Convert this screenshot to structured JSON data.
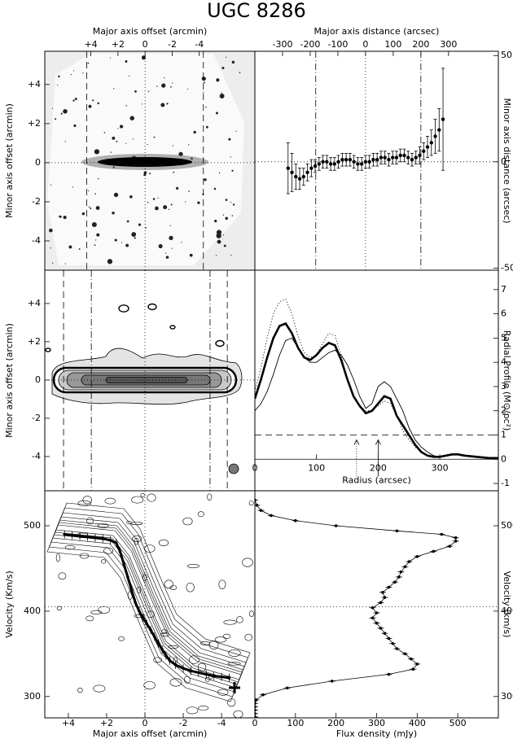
{
  "title": "UGC 8286",
  "chart_data": [
    {
      "type": "image",
      "x_label": "Major axis offset (arcmin)",
      "y_label": "Minor axis offset (arcmin)",
      "xlim": [
        7.4,
        -8.1
      ],
      "ylim": [
        -5.5,
        5.7
      ],
      "xticks": [
        {
          "value": 4,
          "label": "+4"
        },
        {
          "value": 2,
          "label": "+2"
        },
        0,
        -2,
        -4
      ],
      "yticks": [
        {
          "value": 4,
          "label": "+4"
        },
        {
          "value": 2,
          "label": "+2"
        },
        0,
        -2,
        -4
      ],
      "vlines": [
        {
          "x": 4.3,
          "style": "dashed"
        },
        {
          "x": 0,
          "style": "dotted"
        },
        {
          "x": -4.3,
          "style": "dashed"
        }
      ],
      "hlines": [
        {
          "y": 0,
          "style": "dotted"
        }
      ]
    },
    {
      "type": "errorbar",
      "x_label": "Major axis distance (arcsec)",
      "y_label": "Minor axis distance (arcsec)",
      "xlim": [
        -400,
        480
      ],
      "ylim": [
        -51,
        52
      ],
      "xticks": [
        -300,
        -200,
        -100,
        0,
        100,
        200,
        300
      ],
      "yticks": [
        50,
        0,
        -50
      ],
      "vlines": [
        {
          "x": -180,
          "style": "dashdot"
        },
        {
          "x": 0,
          "style": "dotted"
        },
        {
          "x": 200,
          "style": "dashdot"
        }
      ],
      "hlines": [
        {
          "y": 0,
          "style": "dotted"
        }
      ],
      "x": [
        -280,
        -266,
        -252,
        -238,
        -224,
        -210,
        -196,
        -182,
        -168,
        -154,
        -140,
        -126,
        -112,
        -98,
        -84,
        -70,
        -56,
        -42,
        -28,
        -14,
        0,
        14,
        28,
        42,
        56,
        70,
        84,
        98,
        112,
        126,
        140,
        154,
        168,
        182,
        196,
        210,
        224,
        238,
        252,
        266,
        280
      ],
      "y": [
        -3,
        -5,
        -7,
        -8,
        -7,
        -5,
        -3,
        -2,
        -1,
        0,
        0,
        -1,
        -1,
        0,
        1,
        1,
        1,
        0,
        -1,
        -1,
        0,
        0,
        1,
        1,
        2,
        2,
        1,
        2,
        2,
        3,
        3,
        2,
        1,
        2,
        3,
        5,
        7,
        9,
        12,
        15,
        20
      ],
      "errors": [
        12,
        9,
        6,
        5,
        4,
        4,
        4,
        3,
        3,
        3,
        3,
        3,
        3,
        3,
        3,
        3,
        3,
        3,
        3,
        3,
        3,
        3,
        3,
        3,
        3,
        3,
        3,
        3,
        3,
        3,
        3,
        3,
        3,
        3,
        4,
        4,
        5,
        6,
        8,
        10,
        24
      ]
    },
    {
      "type": "contour",
      "y_label": "Minor axis offset (arcmin)",
      "xlim": [
        5.23,
        -5.74
      ],
      "ylim": [
        -5.79,
        5.74
      ],
      "yticks": [
        {
          "value": 4,
          "label": "+4"
        },
        {
          "value": 2,
          "label": "+2"
        },
        0,
        -2,
        -4
      ],
      "vlines": [
        {
          "x": 4.25,
          "style": "dashed"
        },
        {
          "x": 2.8,
          "style": "dashdot"
        },
        {
          "x": 0,
          "style": "dotted"
        },
        {
          "x": -3.4,
          "style": "dashdot"
        },
        {
          "x": -4.3,
          "style": "dashed"
        }
      ],
      "hlines": [
        {
          "y": 0,
          "style": "dotted"
        }
      ]
    },
    {
      "type": "line",
      "x_label": "Radius (arcsec)",
      "y_label": "Radial Profile (M⊙/pc²)",
      "xlim": [
        0,
        395
      ],
      "ylim": [
        -1.3,
        7.8
      ],
      "xticks": [
        0,
        100,
        200,
        300
      ],
      "yticks": [
        7,
        6,
        5,
        4,
        3,
        2,
        1,
        0,
        -1
      ],
      "hlines": [
        {
          "y": 0,
          "style": "solid"
        },
        {
          "y": 1,
          "style": "dashed"
        }
      ],
      "arrows": [
        165,
        200
      ],
      "x": [
        0,
        10,
        20,
        30,
        40,
        50,
        60,
        70,
        80,
        90,
        100,
        110,
        120,
        130,
        140,
        150,
        160,
        170,
        180,
        190,
        200,
        210,
        220,
        230,
        240,
        250,
        260,
        270,
        280,
        290,
        300,
        310,
        320,
        330,
        340,
        360,
        380,
        395
      ],
      "series": [
        {
          "style": "thick",
          "values": [
            2.5,
            3.3,
            4.2,
            5.0,
            5.5,
            5.6,
            5.2,
            4.6,
            4.2,
            4.1,
            4.3,
            4.6,
            4.8,
            4.7,
            4.1,
            3.3,
            2.6,
            2.2,
            1.9,
            2.0,
            2.3,
            2.6,
            2.5,
            1.8,
            1.4,
            1.0,
            0.6,
            0.3,
            0.15,
            0.1,
            0.1,
            0.15,
            0.2,
            0.2,
            0.15,
            0.1,
            0.05,
            0.05
          ]
        },
        {
          "style": "thin",
          "values": [
            2.0,
            2.3,
            2.8,
            3.5,
            4.3,
            4.9,
            5.0,
            4.6,
            4.2,
            4.0,
            4.0,
            4.2,
            4.4,
            4.5,
            4.3,
            3.9,
            3.3,
            2.6,
            2.1,
            2.3,
            3.0,
            3.2,
            3.0,
            2.5,
            2.0,
            1.3,
            0.8,
            0.5,
            0.3,
            0.15,
            0.1,
            0.15,
            0.2,
            0.2,
            0.15,
            0.1,
            0.05,
            0.05
          ]
        },
        {
          "style": "dotted",
          "values": [
            2.8,
            3.8,
            5.0,
            6.0,
            6.5,
            6.6,
            6.0,
            5.1,
            4.4,
            4.2,
            4.3,
            4.8,
            5.2,
            5.1,
            4.3,
            3.3,
            2.6,
            2.2,
            2.0,
            2.0,
            2.2,
            2.4,
            2.3,
            1.8,
            1.2,
            0.8,
            0.5,
            0.3,
            0.15,
            0.1,
            0.1,
            0.15,
            0.2,
            0.2,
            0.15,
            0.1,
            0.05,
            0.05
          ]
        }
      ]
    },
    {
      "type": "pv",
      "x_label": "Major axis offset (arcmin)",
      "y_label": "Velocity (Km/s)",
      "xlim": [
        5.23,
        -5.74
      ],
      "ylim": [
        275,
        541
      ],
      "xticks": [
        {
          "value": 4,
          "label": "+4"
        },
        {
          "value": 2,
          "label": "+2"
        },
        0,
        -2,
        -4
      ],
      "yticks": [
        300,
        400,
        500
      ],
      "vlines": [
        {
          "x": 0,
          "style": "dotted"
        }
      ],
      "hlines": [
        {
          "y": 405,
          "style": "dotted"
        }
      ],
      "x": [
        4.2,
        3.8,
        3.4,
        3.0,
        2.6,
        2.2,
        1.8,
        1.5,
        1.3,
        1.1,
        0.9,
        0.7,
        0.5,
        0.3,
        0.1,
        -0.1,
        -0.3,
        -0.5,
        -0.7,
        -0.9,
        -1.1,
        -1.3,
        -1.6,
        -2.0,
        -2.4,
        -2.8,
        -3.2,
        -3.6,
        -4.0,
        -4.4
      ],
      "velocity": [
        490,
        489,
        488,
        487,
        486,
        485,
        483,
        480,
        470,
        455,
        440,
        425,
        410,
        400,
        392,
        385,
        378,
        370,
        362,
        355,
        348,
        342,
        337,
        333,
        330,
        328,
        326,
        324,
        323,
        322
      ]
    },
    {
      "type": "profile",
      "x_label": "Flux density (mJy)",
      "y_label": "Velocity (km/s)",
      "xlim": [
        0,
        600
      ],
      "ylim": [
        275,
        541
      ],
      "xticks": [
        0,
        100,
        200,
        300,
        400,
        500
      ],
      "yticks": [
        300,
        400,
        500
      ],
      "hlines": [
        {
          "y": 405,
          "style": "dotted"
        }
      ],
      "velocity": [
        276,
        280,
        284,
        288,
        292,
        296,
        302,
        310,
        318,
        326,
        332,
        338,
        344,
        350,
        356,
        362,
        368,
        374,
        380,
        386,
        392,
        398,
        404,
        410,
        416,
        422,
        428,
        434,
        440,
        446,
        452,
        458,
        464,
        470,
        476,
        482,
        486,
        490,
        494,
        500,
        506,
        512,
        518,
        524,
        530
      ],
      "flux": [
        0,
        0,
        0,
        0,
        0,
        3,
        20,
        80,
        190,
        330,
        390,
        400,
        385,
        370,
        350,
        340,
        330,
        320,
        310,
        300,
        290,
        300,
        290,
        310,
        320,
        315,
        330,
        345,
        355,
        360,
        370,
        380,
        400,
        440,
        480,
        495,
        495,
        460,
        350,
        200,
        100,
        40,
        15,
        5,
        0
      ]
    }
  ]
}
